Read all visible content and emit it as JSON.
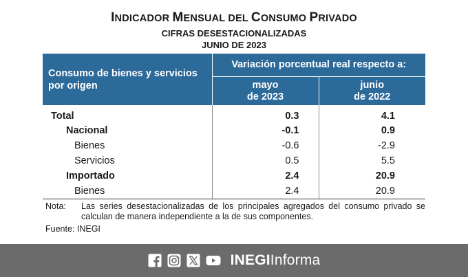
{
  "header": {
    "title_prefix_1": "I",
    "title_rest_1": "NDICADOR ",
    "title_prefix_2": "M",
    "title_rest_2": "ENSUAL DEL ",
    "title_prefix_3": "C",
    "title_rest_3": "ONSUMO ",
    "title_prefix_4": "P",
    "title_rest_4": "RIVADO",
    "subtitle": "CIFRAS DESESTACIONALIZADAS",
    "date": "JUNIO DE 2023"
  },
  "table": {
    "origin_header": "Consumo de bienes y servicios por origen",
    "variation_header": "Variación porcentual real respecto a:",
    "period_1_month": "mayo",
    "period_1_year": "de 2023",
    "period_2_month": "junio",
    "period_2_year": "de 2022",
    "rows": [
      {
        "label": "Total",
        "mayo_2023": "0.3",
        "junio_2022": "4.1"
      },
      {
        "label": "Nacional",
        "mayo_2023": "-0.1",
        "junio_2022": "0.9"
      },
      {
        "label": "Bienes",
        "mayo_2023": "-0.6",
        "junio_2022": "-2.9"
      },
      {
        "label": "Servicios",
        "mayo_2023": "0.5",
        "junio_2022": "5.5"
      },
      {
        "label": "Importado",
        "mayo_2023": "2.4",
        "junio_2022": "20.9"
      },
      {
        "label": "Bienes",
        "mayo_2023": "2.4",
        "junio_2022": "20.9"
      }
    ]
  },
  "note": {
    "label": "Nota:",
    "text": "Las series desestacionalizadas de los principales agregados del consumo privado se calculan de manera independiente a la de sus componentes."
  },
  "source": "Fuente: INEGI",
  "footer": {
    "brand_bold": "INEGI",
    "brand_regular": "Informa",
    "social_icons": [
      "facebook-icon",
      "instagram-icon",
      "x-icon",
      "youtube-icon"
    ],
    "background_color": "#6b6b6b"
  },
  "colors": {
    "header_blue": "#2c6a9a"
  }
}
